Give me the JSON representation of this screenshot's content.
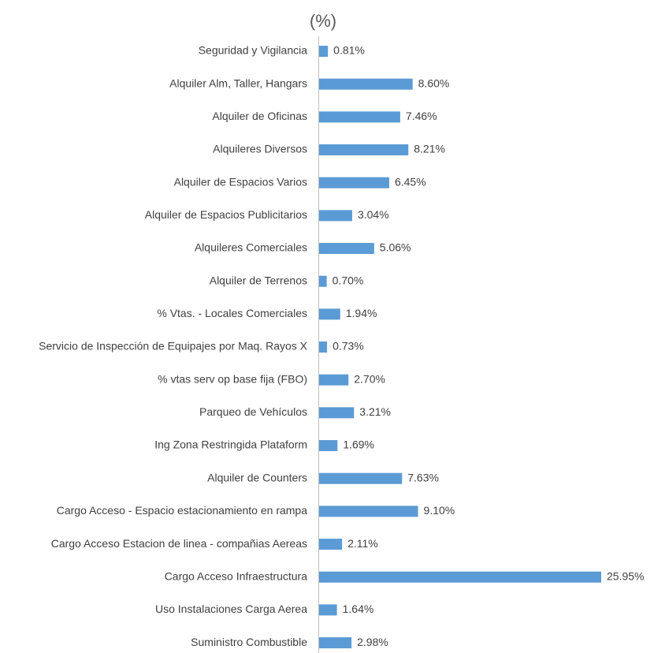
{
  "chart_data": {
    "type": "barh",
    "title": "(%)",
    "color": "#5b9bd5",
    "categories": [
      "Seguridad y Vigilancia",
      "Alquiler Alm, Taller, Hangars",
      "Alquiler de Oficinas",
      "Alquileres Diversos",
      "Alquiler de Espacios Varios",
      "Alquiler de Espacios Publicitarios",
      "Alquileres Comerciales",
      "Alquiler de Terrenos",
      "% Vtas. - Locales Comerciales",
      "Servicio de Inspección de Equipajes por Maq. Rayos X",
      "% vtas serv op base fija (FBO)",
      "Parqueo de Vehículos",
      "Ing Zona Restringida Plataform",
      "Alquiler de Counters",
      "Cargo Acceso - Espacio estacionamiento en rampa",
      "Cargo Acceso Estacion de linea - compañias Aereas",
      "Cargo Acceso Infraestructura",
      "Uso Instalaciones Carga Aerea",
      "Suministro Combustible"
    ],
    "values": [
      0.81,
      8.6,
      7.46,
      8.21,
      6.45,
      3.04,
      5.06,
      0.7,
      1.94,
      0.73,
      2.7,
      3.21,
      1.69,
      7.63,
      9.1,
      2.11,
      25.95,
      1.64,
      2.98
    ],
    "value_labels": [
      "0.81%",
      "8.60%",
      "7.46%",
      "8.21%",
      "6.45%",
      "3.04%",
      "5.06%",
      "0.70%",
      "1.94%",
      "0.73%",
      "2.70%",
      "3.21%",
      "1.69%",
      "7.63%",
      "9.10%",
      "2.11%",
      "25.95%",
      "1.64%",
      "2.98%"
    ]
  }
}
